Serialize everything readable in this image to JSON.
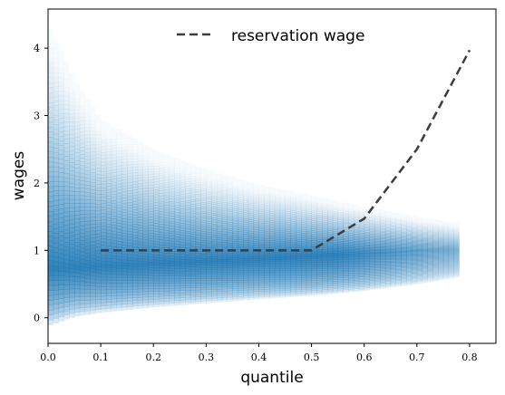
{
  "chart_data": {
    "type": "line",
    "xlabel": "quantile",
    "ylabel": "wages",
    "xlim": [
      0.0,
      0.85
    ],
    "ylim": [
      -0.38,
      4.58
    ],
    "x_ticks": [
      0.0,
      0.1,
      0.2,
      0.3,
      0.4,
      0.5,
      0.6,
      0.7,
      0.8
    ],
    "x_tick_labels": [
      "0.0",
      "0.1",
      "0.2",
      "0.3",
      "0.4",
      "0.5",
      "0.6",
      "0.7",
      "0.8"
    ],
    "y_ticks": [
      0,
      1,
      2,
      3,
      4
    ],
    "y_tick_labels": [
      "0",
      "1",
      "2",
      "3",
      "4"
    ],
    "grid": false,
    "legend_position": "top-center",
    "series": [
      {
        "name": "reservation wage",
        "style": "dashed",
        "color": "#3d3d3d",
        "x": [
          0.1,
          0.2,
          0.3,
          0.4,
          0.5,
          0.6,
          0.7,
          0.8
        ],
        "y": [
          1.0,
          1.0,
          1.0,
          1.0,
          1.0,
          1.47,
          2.5,
          3.97
        ]
      }
    ],
    "density": {
      "color": "#1f77b4",
      "x_max": 0.78,
      "description_values": {
        "x": [
          0.0,
          0.05,
          0.1,
          0.2,
          0.3,
          0.4,
          0.5,
          0.6,
          0.7,
          0.78
        ],
        "lower": [
          -0.12,
          0.02,
          0.08,
          0.16,
          0.22,
          0.28,
          0.33,
          0.4,
          0.5,
          0.6
        ],
        "upper": [
          4.38,
          3.55,
          2.95,
          2.5,
          2.2,
          1.98,
          1.82,
          1.65,
          1.5,
          1.4
        ],
        "center": [
          0.72,
          0.74,
          0.76,
          0.8,
          0.84,
          0.88,
          0.92,
          0.96,
          1.0,
          1.02
        ]
      }
    }
  }
}
